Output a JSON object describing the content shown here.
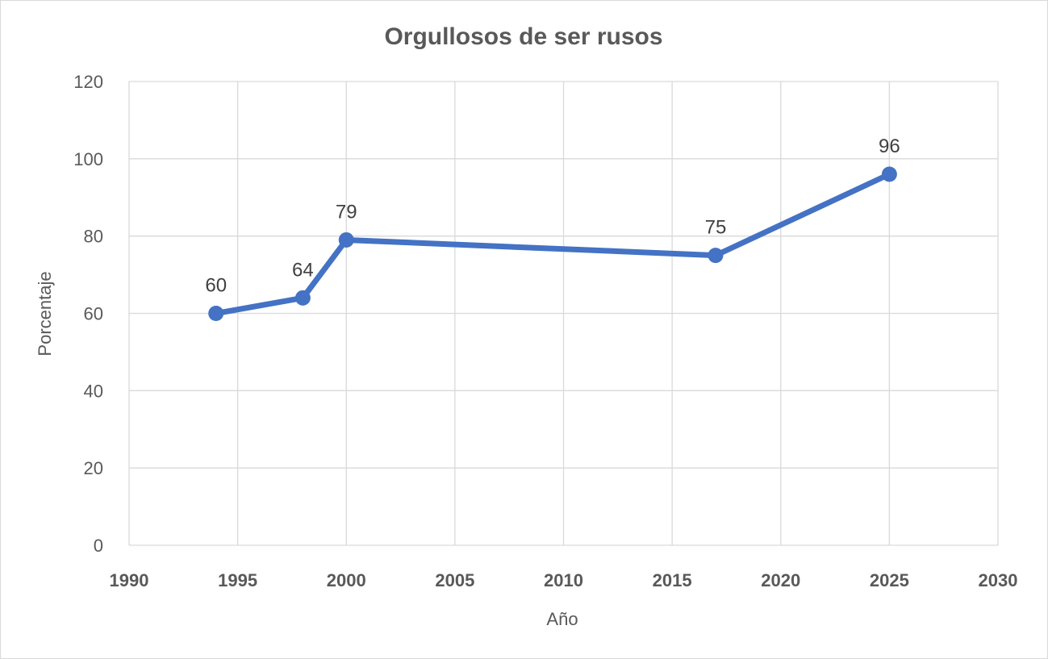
{
  "chart_data": {
    "type": "scatter",
    "title": "Orgullosos de ser rusos",
    "xlabel": "Año",
    "ylabel": "Porcentaje",
    "xlim": [
      1990,
      2030
    ],
    "ylim": [
      0,
      120
    ],
    "x_ticks": [
      "1990",
      "1995",
      "2000",
      "2005",
      "2010",
      "2015",
      "2020",
      "2025",
      "2030"
    ],
    "y_ticks": [
      "0",
      "20",
      "40",
      "60",
      "80",
      "100",
      "120"
    ],
    "grid": true,
    "legend": "none",
    "line_color": "#4472C4",
    "series": [
      {
        "x": [
          1994,
          1998,
          2000,
          2017,
          2025
        ],
        "y": [
          60,
          64,
          79,
          75,
          96
        ],
        "labels": [
          "60",
          "64",
          "79",
          "75",
          "96"
        ]
      }
    ]
  }
}
